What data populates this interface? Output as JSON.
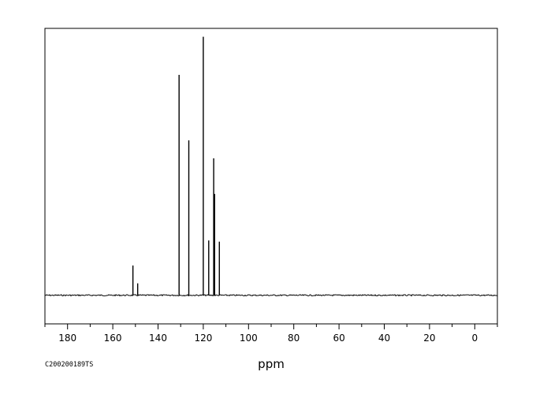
{
  "chart_data": {
    "type": "line",
    "title": "",
    "xlabel": "ppm",
    "ylabel": "",
    "sample_id": "C200200189TS",
    "x_reversed": true,
    "xlim": [
      190,
      -10
    ],
    "ylim": [
      -0.12,
      1.12
    ],
    "x_ticks": [
      180,
      160,
      140,
      120,
      100,
      80,
      60,
      40,
      20,
      0
    ],
    "x_tick_labels": [
      "180",
      "160",
      "140",
      "120",
      "100",
      "80",
      "60",
      "40",
      "20",
      "0"
    ],
    "grid": false,
    "peaks": [
      {
        "ppm": 151.1,
        "intensity": 0.125
      },
      {
        "ppm": 149.0,
        "intensity": 0.05
      },
      {
        "ppm": 130.7,
        "intensity": 0.925
      },
      {
        "ppm": 126.4,
        "intensity": 0.65
      },
      {
        "ppm": 120.0,
        "intensity": 1.085
      },
      {
        "ppm": 117.6,
        "intensity": 0.23
      },
      {
        "ppm": 115.4,
        "intensity": 0.575
      },
      {
        "ppm": 115.0,
        "intensity": 0.425
      },
      {
        "ppm": 112.9,
        "intensity": 0.225
      }
    ]
  }
}
